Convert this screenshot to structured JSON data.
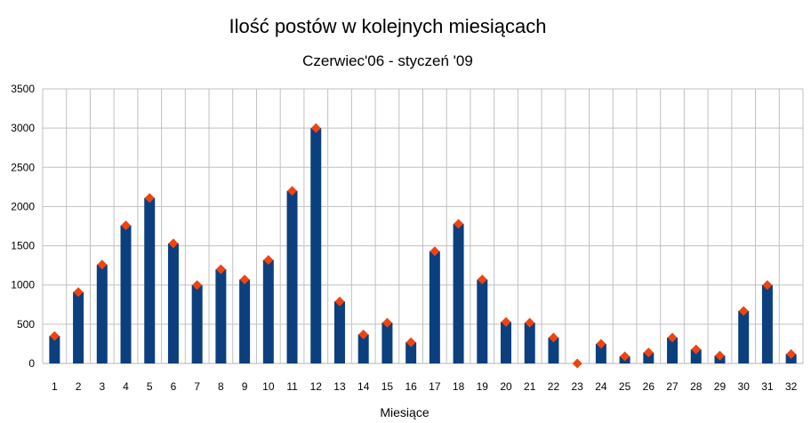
{
  "chart_data": {
    "type": "bar",
    "title": "Ilość postów w kolejnych miesiącach",
    "subtitle": "Czerwiec'06 - styczeń '09",
    "xlabel": "Miesiące",
    "ylabel": "",
    "ylim": [
      0,
      3500
    ],
    "yticks": [
      0,
      500,
      1000,
      1500,
      2000,
      2500,
      3000,
      3500
    ],
    "grid": true,
    "legend": "none",
    "categories": [
      "1",
      "2",
      "3",
      "4",
      "5",
      "6",
      "7",
      "8",
      "9",
      "10",
      "11",
      "12",
      "13",
      "14",
      "15",
      "16",
      "17",
      "18",
      "19",
      "20",
      "21",
      "22",
      "23",
      "24",
      "25",
      "26",
      "27",
      "28",
      "29",
      "30",
      "31",
      "32"
    ],
    "series": [
      {
        "values": [
          350,
          910,
          1260,
          1760,
          2110,
          1530,
          1000,
          1200,
          1070,
          1320,
          2200,
          3000,
          790,
          370,
          520,
          270,
          1430,
          1780,
          1070,
          530,
          520,
          330,
          0,
          250,
          90,
          140,
          330,
          180,
          100,
          670,
          1000,
          120
        ]
      }
    ],
    "colors": {
      "bar": "#0c3f7e",
      "marker": "#ee4411",
      "grid": "#c0c0c0"
    }
  }
}
